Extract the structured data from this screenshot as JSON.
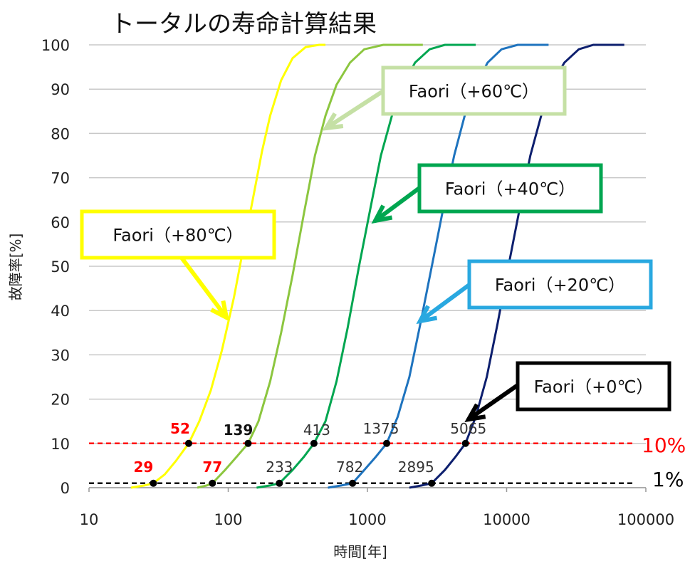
{
  "chart_data": {
    "type": "line",
    "title": "トータルの寿命計算結果",
    "xlabel": "時間[年]",
    "ylabel": "故障率[%]",
    "x_scale": "log",
    "xlim": [
      10,
      100000
    ],
    "ylim": [
      0,
      100
    ],
    "x_ticks": [
      "10",
      "100",
      "1000",
      "10000",
      "100000"
    ],
    "y_ticks": [
      "0",
      "10",
      "20",
      "30",
      "40",
      "50",
      "60",
      "70",
      "80",
      "90",
      "100"
    ],
    "grid": "horizontal",
    "reference_lines": [
      {
        "y": 10,
        "label": "10%",
        "color": "#ff0000"
      },
      {
        "y": 1,
        "label": "1%",
        "color": "#000000"
      }
    ],
    "series": [
      {
        "name": "Faori（+80℃）",
        "color": "#ffff00",
        "box_color": "#ffff00",
        "points": [
          [
            20,
            0
          ],
          [
            25,
            0.5
          ],
          [
            29,
            1
          ],
          [
            35,
            3
          ],
          [
            42,
            6
          ],
          [
            52,
            10
          ],
          [
            62,
            15
          ],
          [
            75,
            22
          ],
          [
            90,
            31
          ],
          [
            110,
            43
          ],
          [
            130,
            55
          ],
          [
            150,
            65
          ],
          [
            175,
            76
          ],
          [
            200,
            84
          ],
          [
            240,
            92
          ],
          [
            290,
            97
          ],
          [
            360,
            99.5
          ],
          [
            450,
            100
          ],
          [
            500,
            100
          ]
        ],
        "marked": [
          {
            "x": 29,
            "y": 1,
            "label": "29",
            "style": "red"
          },
          {
            "x": 52,
            "y": 10,
            "label": "52",
            "style": "red"
          }
        ]
      },
      {
        "name": "Faori（+60℃）",
        "color": "#8cc63f",
        "box_color": "#c5e0a5",
        "points": [
          [
            60,
            0
          ],
          [
            70,
            0.5
          ],
          [
            77,
            1
          ],
          [
            95,
            4
          ],
          [
            115,
            7
          ],
          [
            139,
            10
          ],
          [
            165,
            15
          ],
          [
            200,
            24
          ],
          [
            240,
            35
          ],
          [
            290,
            48
          ],
          [
            350,
            62
          ],
          [
            420,
            75
          ],
          [
            500,
            84
          ],
          [
            600,
            91
          ],
          [
            750,
            96
          ],
          [
            950,
            99
          ],
          [
            1300,
            100
          ],
          [
            2500,
            100
          ]
        ],
        "marked": [
          {
            "x": 77,
            "y": 1,
            "label": "77",
            "style": "red"
          },
          {
            "x": 139,
            "y": 10,
            "label": "139",
            "style": "bold"
          }
        ]
      },
      {
        "name": "Faori（+40℃）",
        "color": "#00a650",
        "box_color": "#00a650",
        "points": [
          [
            160,
            0
          ],
          [
            200,
            0.5
          ],
          [
            233,
            1
          ],
          [
            290,
            4
          ],
          [
            350,
            7
          ],
          [
            413,
            10
          ],
          [
            500,
            15
          ],
          [
            600,
            24
          ],
          [
            720,
            36
          ],
          [
            870,
            50
          ],
          [
            1050,
            63
          ],
          [
            1250,
            75
          ],
          [
            1500,
            84
          ],
          [
            1800,
            91
          ],
          [
            2200,
            96
          ],
          [
            2800,
            99
          ],
          [
            3600,
            100
          ],
          [
            6000,
            100
          ]
        ],
        "marked": [
          {
            "x": 233,
            "y": 1,
            "label": "233",
            "style": "normal"
          },
          {
            "x": 413,
            "y": 10,
            "label": "413",
            "style": "normal"
          }
        ]
      },
      {
        "name": "Faori（+20℃）",
        "color": "#1e73be",
        "box_color": "#29a8e0",
        "points": [
          [
            520,
            0
          ],
          [
            650,
            0.5
          ],
          [
            782,
            1
          ],
          [
            950,
            4
          ],
          [
            1150,
            7
          ],
          [
            1375,
            10
          ],
          [
            1650,
            16
          ],
          [
            2000,
            25
          ],
          [
            2400,
            37
          ],
          [
            2900,
            50
          ],
          [
            3500,
            63
          ],
          [
            4200,
            75
          ],
          [
            5000,
            84
          ],
          [
            6000,
            91
          ],
          [
            7300,
            96
          ],
          [
            9200,
            99
          ],
          [
            12000,
            100
          ],
          [
            20000,
            100
          ]
        ],
        "marked": [
          {
            "x": 782,
            "y": 1,
            "label": "782",
            "style": "normal"
          },
          {
            "x": 1375,
            "y": 10,
            "label": "1375",
            "style": "normal"
          }
        ]
      },
      {
        "name": "Faori（+0℃）",
        "color": "#0d1f6e",
        "box_color": "#000000",
        "points": [
          [
            2000,
            0
          ],
          [
            2450,
            0.5
          ],
          [
            2895,
            1
          ],
          [
            3600,
            4
          ],
          [
            4300,
            7
          ],
          [
            5065,
            10
          ],
          [
            6000,
            16
          ],
          [
            7200,
            25
          ],
          [
            8600,
            37
          ],
          [
            10300,
            50
          ],
          [
            12400,
            63
          ],
          [
            14800,
            75
          ],
          [
            17700,
            84
          ],
          [
            21000,
            91
          ],
          [
            26000,
            96
          ],
          [
            33000,
            99
          ],
          [
            42000,
            100
          ],
          [
            70000,
            100
          ]
        ],
        "marked": [
          {
            "x": 2895,
            "y": 1,
            "label": "2895",
            "style": "normal"
          },
          {
            "x": 5065,
            "y": 10,
            "label": "5065",
            "style": "normal"
          }
        ]
      }
    ]
  }
}
